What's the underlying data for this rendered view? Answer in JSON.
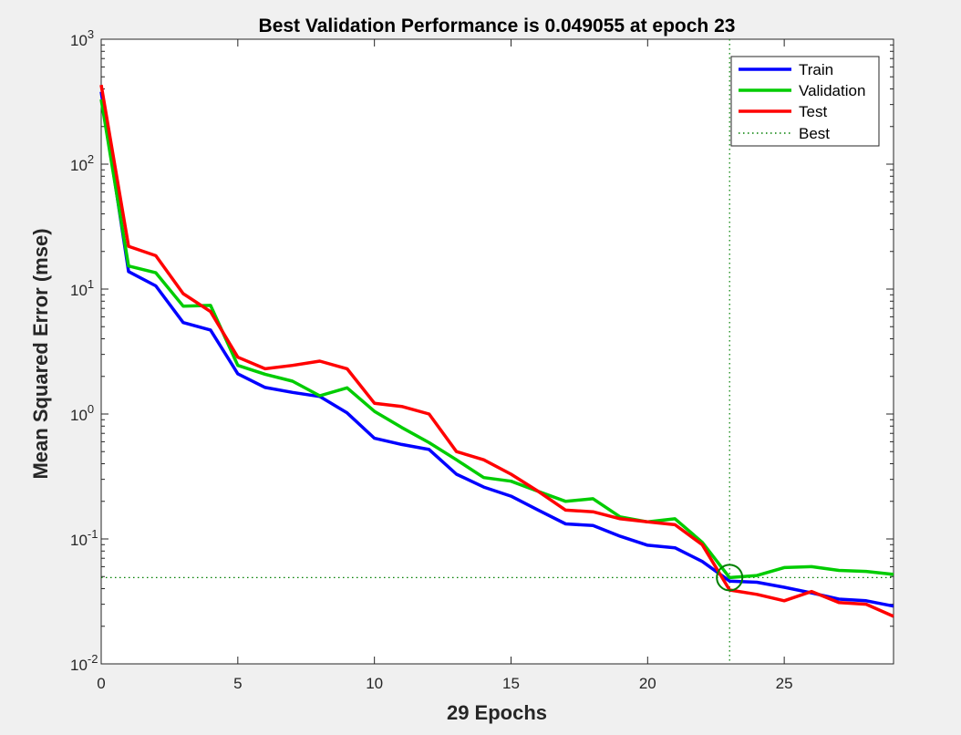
{
  "chart_data": {
    "type": "line",
    "title": "Best Validation Performance is 0.049055 at epoch 23",
    "xlabel": "29 Epochs",
    "ylabel": "Mean Squared Error  (mse)",
    "xlim": [
      0,
      29
    ],
    "ylim": [
      0.01,
      1000
    ],
    "yscale": "log",
    "xticks": [
      0,
      5,
      10,
      15,
      20,
      25
    ],
    "yticks": [
      {
        "value": 0.01,
        "base": "10",
        "exp": "-2"
      },
      {
        "value": 0.1,
        "base": "10",
        "exp": "-1"
      },
      {
        "value": 1,
        "base": "10",
        "exp": "0"
      },
      {
        "value": 10,
        "base": "10",
        "exp": "1"
      },
      {
        "value": 100,
        "base": "10",
        "exp": "2"
      },
      {
        "value": 1000,
        "base": "10",
        "exp": "3"
      }
    ],
    "grid": false,
    "legend_position": "top-right",
    "x": [
      0,
      1,
      2,
      3,
      4,
      5,
      6,
      7,
      8,
      9,
      10,
      11,
      12,
      13,
      14,
      15,
      16,
      17,
      18,
      19,
      20,
      21,
      22,
      23,
      24,
      25,
      26,
      27,
      28,
      29
    ],
    "series": [
      {
        "name": "Train",
        "color": "#0000ff",
        "values": [
          380,
          13.8,
          10.6,
          5.4,
          4.7,
          2.1,
          1.63,
          1.49,
          1.38,
          1.02,
          0.64,
          0.57,
          0.52,
          0.33,
          0.26,
          0.22,
          0.17,
          0.132,
          0.128,
          0.105,
          0.089,
          0.085,
          0.066,
          0.046,
          0.045,
          0.041,
          0.037,
          0.033,
          0.032,
          0.029
        ]
      },
      {
        "name": "Validation",
        "color": "#00cc00",
        "values": [
          330,
          15.3,
          13.5,
          7.3,
          7.4,
          2.45,
          2.08,
          1.83,
          1.4,
          1.62,
          1.05,
          0.78,
          0.59,
          0.43,
          0.31,
          0.29,
          0.24,
          0.2,
          0.21,
          0.15,
          0.137,
          0.145,
          0.094,
          0.049,
          0.051,
          0.059,
          0.06,
          0.056,
          0.055,
          0.052
        ]
      },
      {
        "name": "Test",
        "color": "#ff0000",
        "values": [
          430,
          22,
          18.5,
          9.2,
          6.6,
          2.85,
          2.3,
          2.45,
          2.65,
          2.3,
          1.22,
          1.15,
          1.0,
          0.5,
          0.43,
          0.33,
          0.24,
          0.17,
          0.165,
          0.145,
          0.137,
          0.13,
          0.09,
          0.039,
          0.036,
          0.032,
          0.038,
          0.031,
          0.03,
          0.024
        ]
      }
    ],
    "best": {
      "name": "Best",
      "epoch": 23,
      "value": 0.049055,
      "color": "#007f00"
    }
  }
}
